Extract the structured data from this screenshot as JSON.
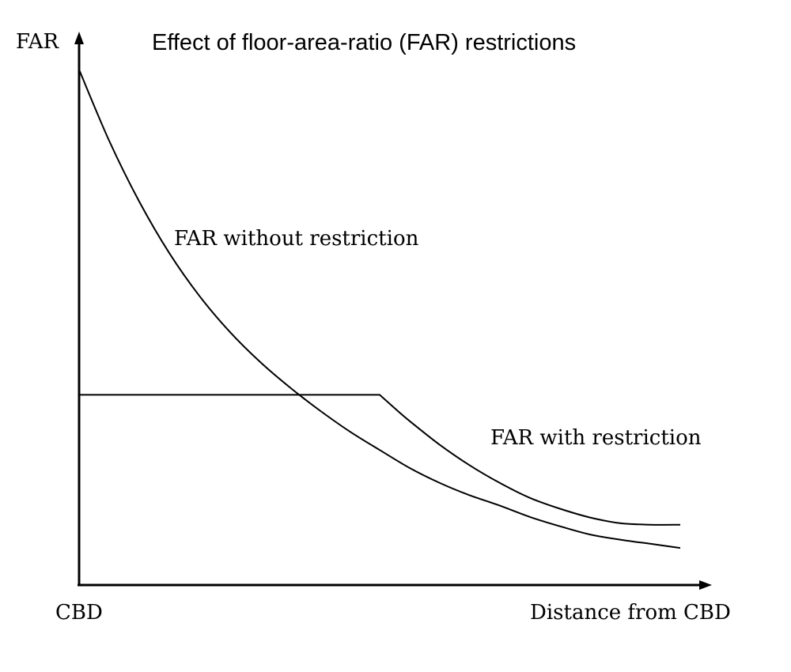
{
  "chart_data": {
    "type": "line",
    "title": "Effect of floor-area-ratio (FAR) restrictions",
    "ylabel": "FAR",
    "xlabel": "Distance from CBD",
    "origin_label": "CBD",
    "grid": false,
    "legend": "none",
    "xlim": [
      0,
      10
    ],
    "ylim": [
      0,
      10
    ],
    "series": [
      {
        "name": "FAR without restriction",
        "x": [
          0,
          0.5,
          1,
          1.5,
          2,
          2.5,
          3,
          3.5,
          4,
          4.5,
          5,
          5.5,
          6,
          6.5,
          7,
          7.5,
          8,
          8.5,
          9,
          9.5,
          10
        ],
        "y": [
          10.0,
          8.62,
          7.44,
          6.44,
          5.61,
          4.92,
          4.34,
          3.84,
          3.39,
          2.98,
          2.62,
          2.27,
          1.98,
          1.74,
          1.54,
          1.32,
          1.14,
          0.98,
          0.88,
          0.8,
          0.72
        ]
      },
      {
        "name": "FAR with restriction",
        "x": [
          0,
          1,
          2,
          3,
          4,
          5,
          5.25,
          5.5,
          6,
          6.5,
          7,
          7.5,
          8,
          8.5,
          9,
          9.5,
          10
        ],
        "y": [
          3.69,
          3.69,
          3.69,
          3.69,
          3.69,
          3.69,
          3.43,
          3.18,
          2.72,
          2.32,
          1.98,
          1.69,
          1.48,
          1.31,
          1.2,
          1.17,
          1.17
        ]
      }
    ],
    "annotations": [
      {
        "text": "FAR without restriction",
        "series": 0
      },
      {
        "text": "FAR with restriction",
        "series": 1
      }
    ]
  }
}
